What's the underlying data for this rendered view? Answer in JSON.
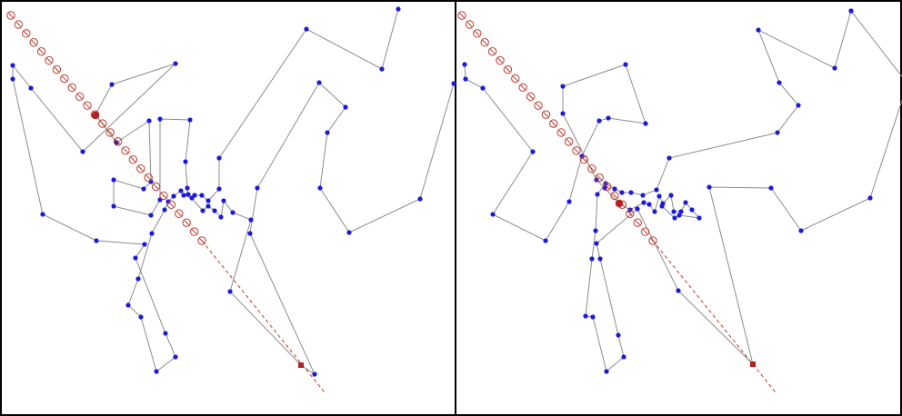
{
  "colors": {
    "frame": "#000000",
    "route": "#8c8c8c",
    "city": "#1a1adb",
    "sweep": "#c0392b",
    "sweep_head": "#b22222"
  },
  "panels": [
    {
      "id": "left",
      "cities": [
        [
          438,
          10
        ],
        [
          420,
          76
        ],
        [
          337,
          32
        ],
        [
          241,
          174
        ],
        [
          241,
          208
        ],
        [
          229,
          221
        ],
        [
          222,
          215
        ],
        [
          214,
          215
        ],
        [
          211,
          218
        ],
        [
          202,
          215
        ],
        [
          199,
          210
        ],
        [
          191,
          216
        ],
        [
          185,
          222
        ],
        [
          181,
          231
        ],
        [
          167,
          257
        ],
        [
          152,
          307
        ],
        [
          141,
          336
        ],
        [
          155,
          349
        ],
        [
          172,
          409
        ],
        [
          193,
          393
        ],
        [
          182,
          367
        ],
        [
          149,
          284
        ],
        [
          159,
          269
        ],
        [
          106,
          265
        ],
        [
          47,
          236
        ],
        [
          14,
          87
        ],
        [
          14,
          72
        ],
        [
          34,
          97
        ],
        [
          91,
          167
        ],
        [
          193,
          70
        ],
        [
          123,
          93
        ],
        [
          105,
          126
        ],
        [
          128,
          157
        ],
        [
          164,
          133
        ],
        [
          166,
          200
        ],
        [
          158,
          208
        ],
        [
          125,
          198
        ],
        [
          125,
          227
        ],
        [
          166,
          237
        ],
        [
          176,
          220
        ],
        [
          176,
          131
        ],
        [
          209,
          132
        ],
        [
          204,
          178
        ],
        [
          206,
          207
        ],
        [
          207,
          214
        ],
        [
          223,
          232
        ],
        [
          229,
          227
        ],
        [
          236,
          232
        ],
        [
          243,
          239
        ],
        [
          246,
          221
        ],
        [
          256,
          234
        ],
        [
          276,
          242
        ],
        [
          253,
          321
        ],
        [
          331,
          402
        ],
        [
          346,
          412
        ],
        [
          275,
          257
        ],
        [
          283,
          207
        ],
        [
          351,
          91
        ],
        [
          380,
          118
        ],
        [
          360,
          146
        ],
        [
          352,
          207
        ],
        [
          384,
          256
        ],
        [
          462,
          219
        ],
        [
          499,
          92
        ]
      ],
      "sweep_dense_count": 26,
      "sweep_start": [
        12,
        17
      ],
      "sweep_mid": [
        222,
        265
      ],
      "sweep_end": [
        357,
        432
      ],
      "sweep_head": [
        105,
        127
      ],
      "sweep_tail_marker": [
        331,
        402
      ]
    },
    {
      "id": "right",
      "cities": [
        [
          936,
          12
        ],
        [
          918,
          75
        ],
        [
          834,
          33
        ],
        [
          857,
          91
        ],
        [
          878,
          116
        ],
        [
          855,
          146
        ],
        [
          736,
          174
        ],
        [
          722,
          209
        ],
        [
          707,
          215
        ],
        [
          694,
          212
        ],
        [
          684,
          212
        ],
        [
          676,
          208
        ],
        [
          666,
          202
        ],
        [
          657,
          214
        ],
        [
          655,
          254
        ],
        [
          651,
          285
        ],
        [
          644,
          348
        ],
        [
          652,
          349
        ],
        [
          667,
          409
        ],
        [
          686,
          393
        ],
        [
          680,
          369
        ],
        [
          660,
          285
        ],
        [
          656,
          268
        ],
        [
          701,
          230
        ],
        [
          746,
          320
        ],
        [
          828,
          401
        ],
        [
          780,
          206
        ],
        [
          848,
          207
        ],
        [
          881,
          254
        ],
        [
          957,
          218
        ],
        [
          998,
          92
        ],
        [
          998,
          92
        ],
        [
          936,
          12
        ]
      ],
      "cities_extra": [
        [
          511,
          71
        ],
        [
          512,
          87
        ],
        [
          531,
          97
        ],
        [
          586,
          167
        ],
        [
          542,
          236
        ],
        [
          600,
          265
        ],
        [
          626,
          222
        ],
        [
          640,
          172
        ],
        [
          659,
          133
        ],
        [
          669,
          130
        ],
        [
          710,
          136
        ],
        [
          688,
          71
        ],
        [
          619,
          95
        ],
        [
          619,
          125
        ],
        [
          656,
          198
        ],
        [
          665,
          207
        ],
        [
          681,
          224
        ],
        [
          693,
          231
        ],
        [
          708,
          223
        ],
        [
          714,
          225
        ],
        [
          720,
          233
        ],
        [
          725,
          216
        ],
        [
          729,
          224
        ],
        [
          738,
          215
        ],
        [
          741,
          233
        ],
        [
          749,
          233
        ],
        [
          754,
          223
        ],
        [
          761,
          231
        ],
        [
          769,
          240
        ],
        [
          747,
          237
        ],
        [
          742,
          240
        ],
        [
          728,
          227
        ]
      ],
      "sweep_dense_count": 26,
      "sweep_start": [
        508,
        17
      ],
      "sweep_mid": [
        718,
        265
      ],
      "sweep_end": [
        853,
        432
      ],
      "sweep_head": [
        681,
        224
      ],
      "sweep_tail_marker": [
        828,
        401
      ]
    }
  ]
}
